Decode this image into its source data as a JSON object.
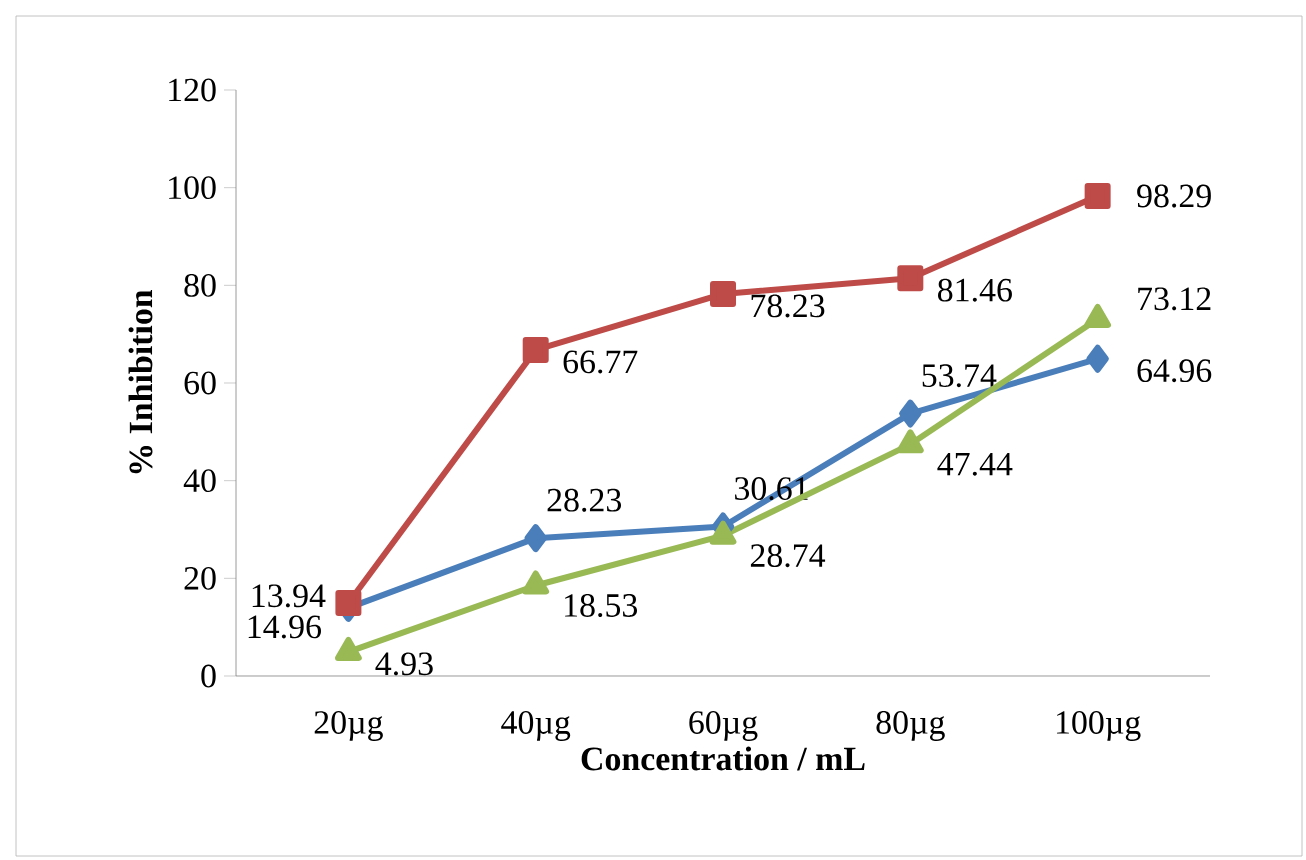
{
  "chart_data": {
    "type": "line",
    "xlabel": "Concentration / mL",
    "ylabel": "% Inhibition",
    "categories": [
      "20µg",
      "40µg",
      "60µg",
      "80µg",
      "100µg"
    ],
    "series": [
      {
        "color": "#4a7ebb",
        "marker": "diamond",
        "values": [
          13.94,
          28.23,
          30.61,
          53.74,
          64.96
        ]
      },
      {
        "color": "#be4b48",
        "marker": "square",
        "values": [
          14.96,
          66.77,
          78.23,
          81.46,
          98.29
        ]
      },
      {
        "color": "#98b954",
        "marker": "triangle",
        "values": [
          4.93,
          18.53,
          28.74,
          47.44,
          73.12
        ]
      }
    ],
    "ylim": [
      0,
      120
    ],
    "yticks": [
      0,
      20,
      40,
      60,
      80,
      100,
      120
    ],
    "data_labels": true,
    "grid": false
  }
}
